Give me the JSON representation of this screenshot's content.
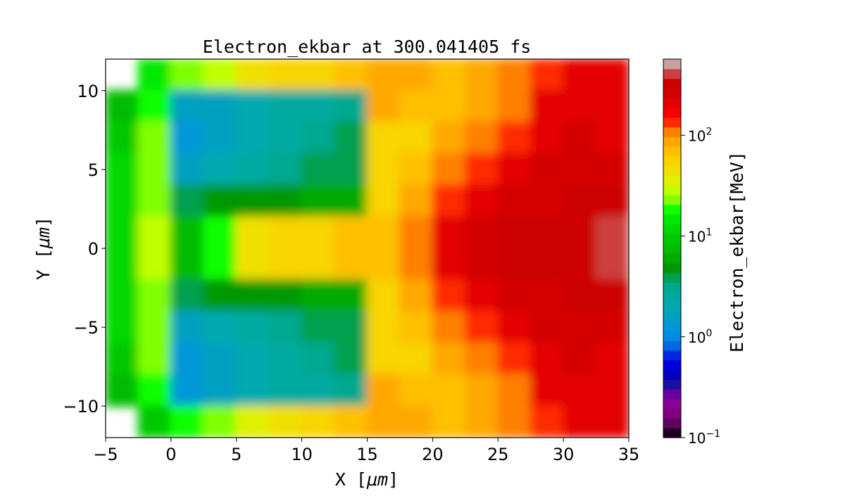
{
  "chart_data": {
    "type": "heatmap",
    "title": "Electron_ekbar at 300.041405 fs",
    "xlabel": "X [μm]",
    "ylabel": "Y [μm]",
    "xlabel_parts": {
      "pre": "X  [",
      "unit": "μm",
      "post": "]"
    },
    "ylabel_parts": {
      "pre": "Y  [",
      "unit": "μm",
      "post": "]"
    },
    "xlim": [
      -5,
      35
    ],
    "ylim": [
      -12,
      12
    ],
    "xticks": [
      -5,
      0,
      5,
      10,
      15,
      20,
      25,
      30,
      35
    ],
    "yticks": [
      -10,
      -5,
      0,
      5,
      10
    ],
    "xtick_labels": [
      "−5",
      "0",
      "5",
      "10",
      "15",
      "20",
      "25",
      "30",
      "35"
    ],
    "ytick_labels": [
      "−10",
      "−5",
      "0",
      "5",
      "10"
    ],
    "x_edges": [
      -5,
      -2.5,
      0,
      2.5,
      5,
      7.5,
      10,
      12.5,
      15,
      17.5,
      20,
      22.5,
      25,
      27.5,
      30,
      32.5,
      35
    ],
    "y_centers": [
      11,
      9,
      7,
      5,
      3,
      1,
      -1,
      -3,
      -5,
      -7,
      -9,
      -11
    ],
    "values_MeV": [
      [
        null,
        15,
        25,
        30,
        40,
        50,
        60,
        70,
        80,
        80,
        70,
        80,
        100,
        150,
        200,
        200
      ],
      [
        8,
        20,
        1.5,
        1.5,
        2,
        2.5,
        2.5,
        3,
        80,
        70,
        70,
        90,
        120,
        200,
        200,
        200
      ],
      [
        10,
        25,
        1.3,
        1.5,
        2,
        2.5,
        3,
        3.5,
        60,
        60,
        80,
        100,
        150,
        200,
        250,
        200
      ],
      [
        12,
        25,
        1.5,
        2,
        2.5,
        3,
        3.5,
        4,
        50,
        70,
        100,
        150,
        200,
        250,
        250,
        250
      ],
      [
        12,
        25,
        4,
        5,
        5,
        5,
        6,
        6,
        50,
        80,
        150,
        200,
        250,
        250,
        300,
        300
      ],
      [
        12,
        30,
        8,
        20,
        40,
        50,
        60,
        70,
        70,
        100,
        200,
        250,
        300,
        300,
        300,
        400
      ],
      [
        12,
        30,
        8,
        20,
        40,
        50,
        60,
        70,
        70,
        100,
        200,
        250,
        300,
        300,
        300,
        400
      ],
      [
        12,
        25,
        4,
        5,
        5,
        5,
        6,
        6,
        50,
        80,
        150,
        200,
        250,
        250,
        300,
        300
      ],
      [
        12,
        25,
        1.5,
        2,
        2.5,
        3,
        3.5,
        4,
        50,
        70,
        100,
        150,
        200,
        250,
        250,
        250
      ],
      [
        10,
        25,
        1.2,
        1.5,
        2,
        2.5,
        3,
        3.5,
        60,
        60,
        80,
        100,
        150,
        200,
        250,
        200
      ],
      [
        8,
        20,
        1.2,
        1.5,
        2,
        2.5,
        2.5,
        3,
        80,
        70,
        70,
        90,
        120,
        200,
        200,
        200
      ],
      [
        null,
        10,
        20,
        25,
        35,
        45,
        60,
        70,
        80,
        80,
        70,
        80,
        100,
        150,
        200,
        200
      ]
    ],
    "colorbar": {
      "label": "Electron_ekbar[MeV]",
      "scale": "log",
      "vmin": 0.1,
      "vmax": 570,
      "ticks": [
        0.1,
        1,
        10,
        100
      ],
      "tick_labels": [
        {
          "base": "10",
          "exp": "−1"
        },
        {
          "base": "10",
          "exp": "0"
        },
        {
          "base": "10",
          "exp": "1"
        },
        {
          "base": "10",
          "exp": "2"
        }
      ],
      "colors_bottom_to_top": [
        "#200020",
        "#600060",
        "#800080",
        "#8a0098",
        "#6a00a0",
        "#1a10a0",
        "#0000c0",
        "#0000dd",
        "#0028e0",
        "#0068e0",
        "#008ce0",
        "#0098d8",
        "#00a0c0",
        "#00aab0",
        "#00aaa0",
        "#00a890",
        "#00a050",
        "#009800",
        "#00aa00",
        "#00bb00",
        "#00c800",
        "#00d800",
        "#00e800",
        "#10ff00",
        "#80ff00",
        "#c0ff00",
        "#e0f000",
        "#f0e000",
        "#f8d400",
        "#ffc000",
        "#ffa800",
        "#ff8000",
        "#ff2a00",
        "#f80000",
        "#e40000",
        "#d40000",
        "#cc0000",
        "#cc4040",
        "#c8a0a0"
      ]
    },
    "grid": false
  }
}
